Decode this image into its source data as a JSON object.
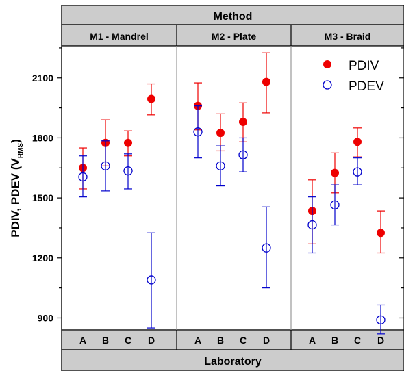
{
  "chart_data": {
    "type": "scatter",
    "title": "",
    "ylabel": "PDIV, PDEV (V",
    "ylabel_subscript": "RMS",
    "ylabel_close": ")",
    "xlabel": "Laboratory",
    "top_header": "Method",
    "ylim": [
      840,
      2260
    ],
    "yticks": [
      900,
      1200,
      1500,
      1800,
      2100
    ],
    "grid": false,
    "legend_position": "top-right",
    "methods": [
      {
        "label": "M1 - Mandrel",
        "labs": [
          "A",
          "B",
          "C",
          "D"
        ]
      },
      {
        "label": "M2 - Plate",
        "labs": [
          "A",
          "B",
          "C",
          "D"
        ]
      },
      {
        "label": "M3 - Braid",
        "labs": [
          "A",
          "B",
          "C",
          "D"
        ]
      }
    ],
    "series": [
      {
        "name": "PDIV",
        "color": "#ee0000",
        "marker": "filled-circle",
        "points": [
          {
            "method": "M1 - Mandrel",
            "lab": "A",
            "y": 1650,
            "ylow": 1545,
            "yhigh": 1750
          },
          {
            "method": "M1 - Mandrel",
            "lab": "B",
            "y": 1775,
            "ylow": 1660,
            "yhigh": 1890
          },
          {
            "method": "M1 - Mandrel",
            "lab": "C",
            "y": 1775,
            "ylow": 1710,
            "yhigh": 1835
          },
          {
            "method": "M1 - Mandrel",
            "lab": "D",
            "y": 1995,
            "ylow": 1915,
            "yhigh": 2070
          },
          {
            "method": "M2 - Plate",
            "lab": "A",
            "y": 1960,
            "ylow": 1840,
            "yhigh": 2075
          },
          {
            "method": "M2 - Plate",
            "lab": "B",
            "y": 1825,
            "ylow": 1735,
            "yhigh": 1920
          },
          {
            "method": "M2 - Plate",
            "lab": "C",
            "y": 1880,
            "ylow": 1780,
            "yhigh": 1975
          },
          {
            "method": "M2 - Plate",
            "lab": "D",
            "y": 2080,
            "ylow": 1925,
            "yhigh": 2225
          },
          {
            "method": "M3 - Braid",
            "lab": "A",
            "y": 1435,
            "ylow": 1270,
            "yhigh": 1590
          },
          {
            "method": "M3 - Braid",
            "lab": "B",
            "y": 1625,
            "ylow": 1525,
            "yhigh": 1725
          },
          {
            "method": "M3 - Braid",
            "lab": "C",
            "y": 1780,
            "ylow": 1705,
            "yhigh": 1850
          },
          {
            "method": "M3 - Braid",
            "lab": "D",
            "y": 1325,
            "ylow": 1225,
            "yhigh": 1435
          }
        ]
      },
      {
        "name": "PDEV",
        "color": "#0000cc",
        "marker": "open-circle",
        "points": [
          {
            "method": "M1 - Mandrel",
            "lab": "A",
            "y": 1605,
            "ylow": 1505,
            "yhigh": 1710
          },
          {
            "method": "M1 - Mandrel",
            "lab": "B",
            "y": 1660,
            "ylow": 1535,
            "yhigh": 1785
          },
          {
            "method": "M1 - Mandrel",
            "lab": "C",
            "y": 1635,
            "ylow": 1545,
            "yhigh": 1720
          },
          {
            "method": "M1 - Mandrel",
            "lab": "D",
            "y": 1090,
            "ylow": 850,
            "yhigh": 1325
          },
          {
            "method": "M2 - Plate",
            "lab": "A",
            "y": 1830,
            "ylow": 1700,
            "yhigh": 1960
          },
          {
            "method": "M2 - Plate",
            "lab": "B",
            "y": 1660,
            "ylow": 1560,
            "yhigh": 1760
          },
          {
            "method": "M2 - Plate",
            "lab": "C",
            "y": 1715,
            "ylow": 1630,
            "yhigh": 1800
          },
          {
            "method": "M2 - Plate",
            "lab": "D",
            "y": 1250,
            "ylow": 1050,
            "yhigh": 1455
          },
          {
            "method": "M3 - Braid",
            "lab": "A",
            "y": 1365,
            "ylow": 1225,
            "yhigh": 1505
          },
          {
            "method": "M3 - Braid",
            "lab": "B",
            "y": 1465,
            "ylow": 1365,
            "yhigh": 1565
          },
          {
            "method": "M3 - Braid",
            "lab": "C",
            "y": 1630,
            "ylow": 1565,
            "yhigh": 1700
          },
          {
            "method": "M3 - Braid",
            "lab": "D",
            "y": 890,
            "ylow": 820,
            "yhigh": 965
          }
        ]
      }
    ]
  }
}
